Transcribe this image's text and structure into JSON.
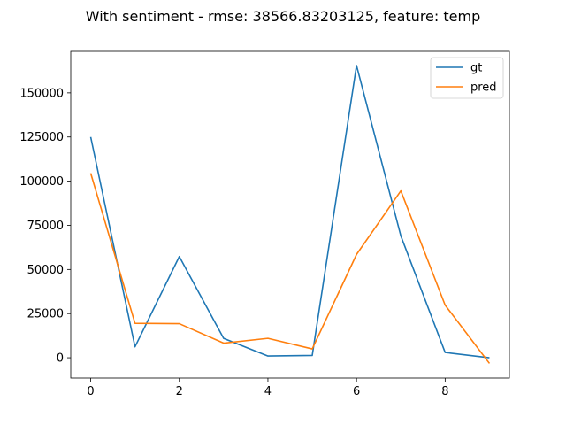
{
  "chart_data": {
    "type": "line",
    "title": "With sentiment - rmse: 38566.83203125, feature: temp",
    "xlabel": "",
    "ylabel": "",
    "x": [
      0,
      1,
      2,
      3,
      4,
      5,
      6,
      7,
      8,
      9
    ],
    "xlim": [
      -0.45,
      9.45
    ],
    "ylim": [
      -11500,
      173500
    ],
    "xticks": [
      0,
      2,
      4,
      6,
      8
    ],
    "yticks": [
      0,
      25000,
      50000,
      75000,
      100000,
      125000,
      150000
    ],
    "grid": false,
    "legend_position": "top-right",
    "series": [
      {
        "name": "gt",
        "color": "#1f77b4",
        "values": [
          125000,
          6200,
          57300,
          11000,
          1000,
          1300,
          165500,
          69000,
          3000,
          0
        ]
      },
      {
        "name": "pred",
        "color": "#ff7f0e",
        "values": [
          104500,
          19500,
          19300,
          8300,
          11000,
          5000,
          58500,
          94500,
          29800,
          -3200
        ]
      }
    ]
  }
}
